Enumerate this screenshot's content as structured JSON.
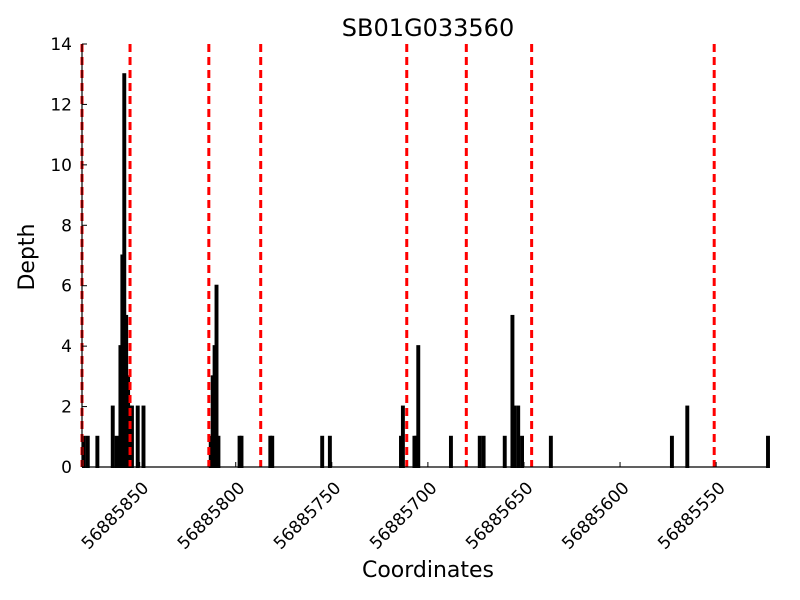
{
  "chart_data": {
    "type": "bar",
    "title": "SB01G033560",
    "xlabel": "Coordinates",
    "ylabel": "Depth",
    "x_reversed": true,
    "xlim": [
      56885880,
      56885523
    ],
    "ylim": [
      0,
      14
    ],
    "x_ticks": [
      56885850,
      56885800,
      56885750,
      56885700,
      56885650,
      56885600,
      56885550
    ],
    "y_ticks": [
      0,
      2,
      4,
      6,
      8,
      10,
      12,
      14
    ],
    "x": [
      56885879,
      56885877,
      56885872,
      56885864,
      56885862,
      56885860,
      56885859,
      56885858,
      56885857,
      56885856,
      56885855,
      56885854,
      56885851,
      56885848,
      56885813,
      56885812,
      56885811,
      56885810,
      56885809,
      56885798,
      56885797,
      56885782,
      56885781,
      56885755,
      56885751,
      56885714,
      56885713,
      56885707,
      56885706,
      56885705,
      56885688,
      56885673,
      56885671,
      56885660,
      56885656,
      56885655,
      56885653,
      56885651,
      56885636,
      56885573,
      56885565,
      56885523
    ],
    "values": [
      1,
      1,
      1,
      2,
      1,
      4,
      7,
      13,
      5,
      3,
      2,
      2,
      2,
      2,
      1,
      3,
      4,
      6,
      1,
      1,
      1,
      1,
      1,
      1,
      1,
      1,
      2,
      1,
      1,
      4,
      1,
      1,
      1,
      1,
      5,
      2,
      2,
      1,
      1,
      1,
      2,
      1
    ],
    "reference_lines_x": [
      56885880,
      56885855,
      56885814,
      56885787,
      56885711,
      56885680,
      56885646,
      56885551
    ],
    "bar_color": "#000000",
    "reference_line_color": "#ff0000",
    "reference_line_style": "dashed",
    "grid": false
  }
}
